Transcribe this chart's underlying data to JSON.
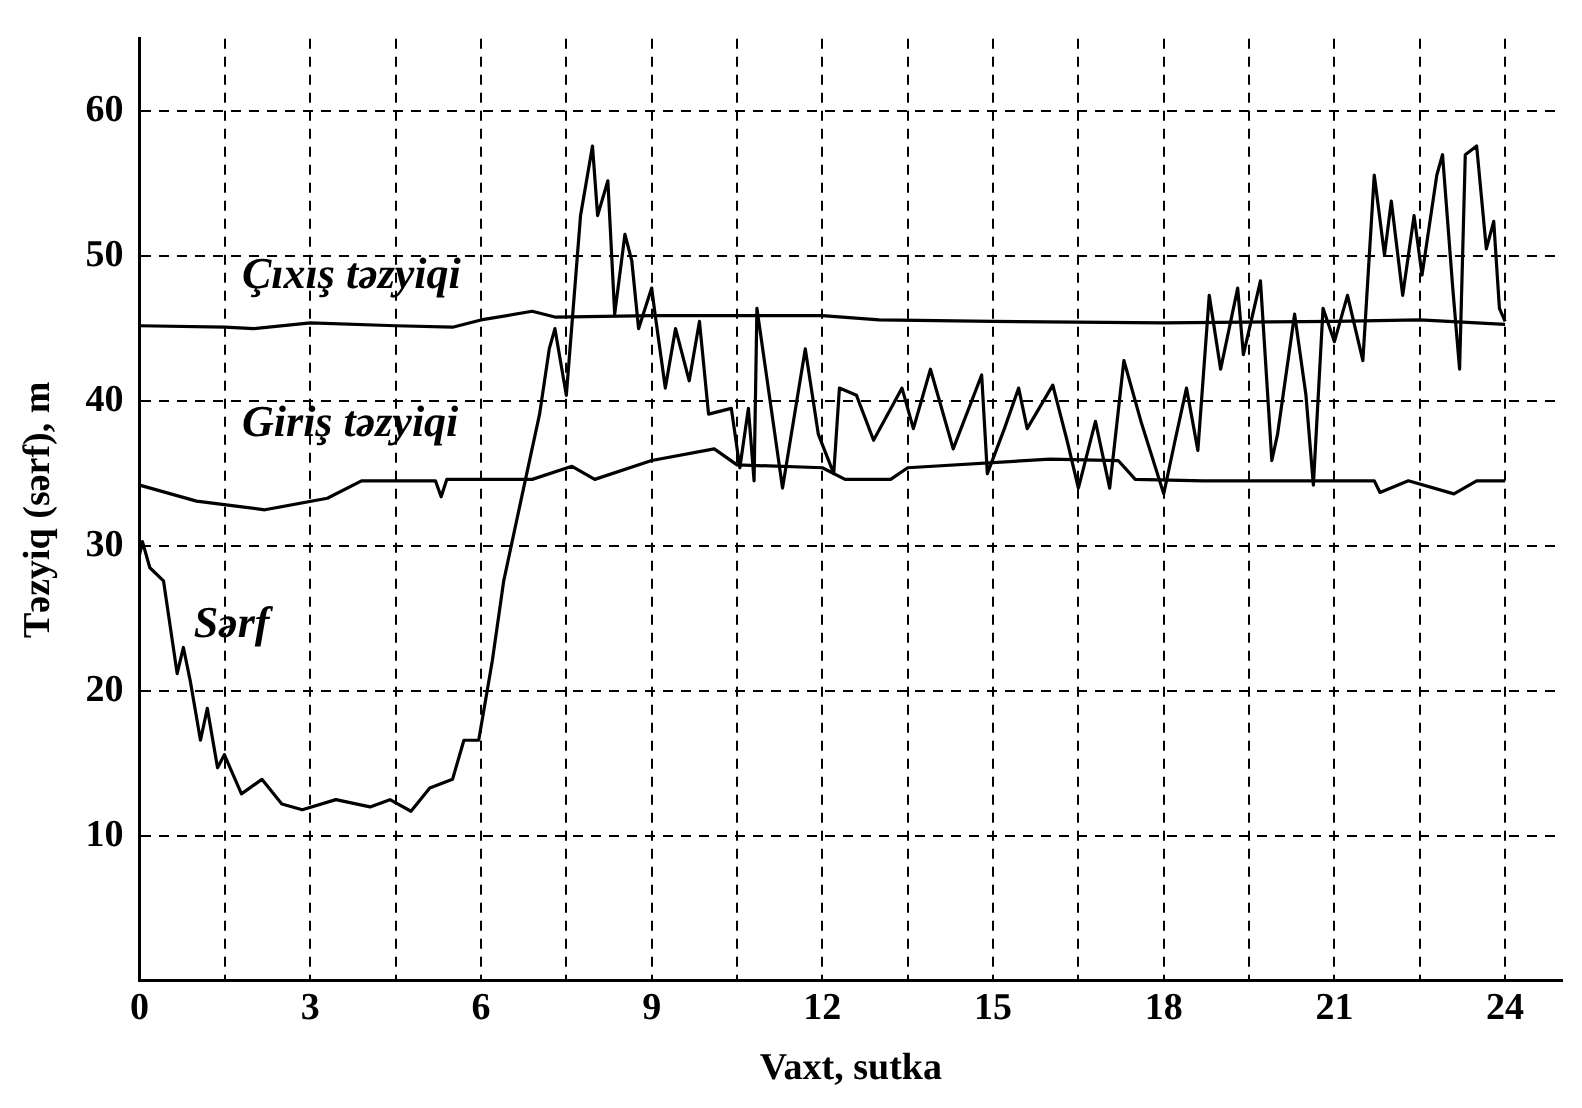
{
  "chart_data": {
    "type": "line",
    "xlabel": "Vaxt, sutka",
    "ylabel": "Təzyiq (sərf), m",
    "xlim": [
      0,
      25
    ],
    "ylim": [
      0,
      65
    ],
    "xticks": [
      0,
      {
        "value": 1.5,
        "label": null
      },
      3,
      {
        "value": 4.5,
        "label": null
      },
      6,
      {
        "value": 7.5,
        "label": null
      },
      9,
      {
        "value": 10.5,
        "label": null
      },
      12,
      {
        "value": 13.5,
        "label": null
      },
      15,
      {
        "value": 16.5,
        "label": null
      },
      18,
      {
        "value": 19.5,
        "label": null
      },
      21,
      {
        "value": 22.5,
        "label": null
      },
      24
    ],
    "yticks": [
      10,
      20,
      30,
      40,
      50,
      60
    ],
    "grid": true,
    "legend": false,
    "marker": "none",
    "line_style": "solid",
    "series": [
      {
        "name": "Çıxış təzyiqi",
        "color": "#000000",
        "x": [
          0,
          1.5,
          2,
          3,
          4.5,
          5.5,
          6,
          6.9,
          7.3,
          9,
          12,
          13,
          15,
          18,
          21,
          22.5,
          23,
          24
        ],
        "values": [
          45.2,
          45.1,
          45.0,
          45.4,
          45.2,
          45.1,
          45.6,
          46.2,
          45.8,
          45.9,
          45.9,
          45.6,
          45.5,
          45.4,
          45.5,
          45.6,
          45.5,
          45.3
        ]
      },
      {
        "name": "Giriş təzyiqi",
        "color": "#000000",
        "x": [
          0,
          1.0,
          2.2,
          3.3,
          3.9,
          5.2,
          5.3,
          5.4,
          6.9,
          7.6,
          8.0,
          9.0,
          10.1,
          10.5,
          12.0,
          12.4,
          13.2,
          13.5,
          16.0,
          17.2,
          17.5,
          18.7,
          21.7,
          21.8,
          22.3,
          23.1,
          23.5,
          24.0
        ],
        "values": [
          34.2,
          33.1,
          32.5,
          33.3,
          34.5,
          34.5,
          33.4,
          34.6,
          34.6,
          35.5,
          34.6,
          35.9,
          36.7,
          35.6,
          35.4,
          34.6,
          34.6,
          35.4,
          36.0,
          35.9,
          34.6,
          34.5,
          34.5,
          33.7,
          34.5,
          33.6,
          34.5,
          34.5
        ]
      },
      {
        "name": "Sərf",
        "color": "#000000",
        "x": [
          0,
          0.05,
          0.18,
          0.42,
          0.66,
          0.77,
          0.89,
          1.07,
          1.19,
          1.37,
          1.49,
          1.79,
          2.15,
          2.5,
          2.86,
          3.45,
          4.05,
          4.4,
          4.77,
          5.1,
          5.5,
          5.7,
          5.96,
          6.2,
          6.4,
          6.7,
          7.03,
          7.2,
          7.3,
          7.5,
          7.75,
          7.96,
          8.05,
          8.23,
          8.35,
          8.53,
          8.65,
          8.77,
          9.0,
          9.06,
          9.24,
          9.42,
          9.66,
          9.84,
          10.0,
          10.4,
          10.55,
          10.7,
          10.8,
          10.85,
          11.3,
          11.7,
          11.93,
          12.2,
          12.3,
          12.6,
          12.9,
          13.4,
          13.6,
          13.9,
          14.3,
          14.8,
          14.9,
          15.2,
          15.45,
          15.6,
          16.05,
          16.3,
          16.5,
          16.8,
          17.05,
          17.3,
          17.6,
          18.0,
          18.2,
          18.4,
          18.6,
          18.8,
          19.0,
          19.3,
          19.4,
          19.7,
          19.9,
          20.0,
          20.3,
          20.5,
          20.63,
          20.8,
          21.0,
          21.23,
          21.5,
          21.7,
          21.88,
          22.0,
          22.2,
          22.4,
          22.54,
          22.8,
          22.9,
          23.08,
          23.2,
          23.3,
          23.5,
          23.67,
          23.8,
          23.9,
          24.0
        ],
        "values": [
          29.4,
          30.3,
          28.5,
          27.6,
          21.2,
          23.0,
          20.7,
          16.6,
          18.8,
          14.7,
          15.6,
          12.9,
          13.9,
          12.2,
          11.8,
          12.5,
          12.0,
          12.5,
          11.7,
          13.3,
          13.9,
          16.6,
          16.6,
          22.1,
          27.6,
          33.1,
          39.1,
          43.6,
          45.0,
          40.4,
          52.8,
          57.6,
          52.8,
          55.2,
          46.0,
          51.5,
          49.7,
          45.0,
          47.8,
          46.0,
          40.9,
          45.0,
          41.4,
          45.5,
          39.1,
          39.5,
          35.4,
          39.5,
          34.5,
          46.4,
          34.0,
          43.6,
          37.7,
          35.0,
          40.9,
          40.4,
          37.3,
          40.9,
          38.1,
          42.2,
          36.7,
          41.8,
          35.0,
          38.1,
          40.9,
          38.1,
          41.1,
          37.3,
          34.0,
          38.6,
          34.0,
          42.8,
          38.6,
          33.6,
          37.3,
          40.9,
          36.6,
          47.3,
          42.2,
          47.8,
          43.2,
          48.3,
          35.9,
          37.7,
          46.0,
          40.4,
          34.2,
          46.4,
          44.1,
          47.3,
          42.8,
          55.6,
          50.1,
          53.8,
          47.3,
          52.8,
          48.7,
          55.6,
          57.0,
          47.8,
          42.2,
          57.0,
          57.6,
          50.5,
          52.4,
          46.4,
          45.5
        ]
      }
    ]
  }
}
